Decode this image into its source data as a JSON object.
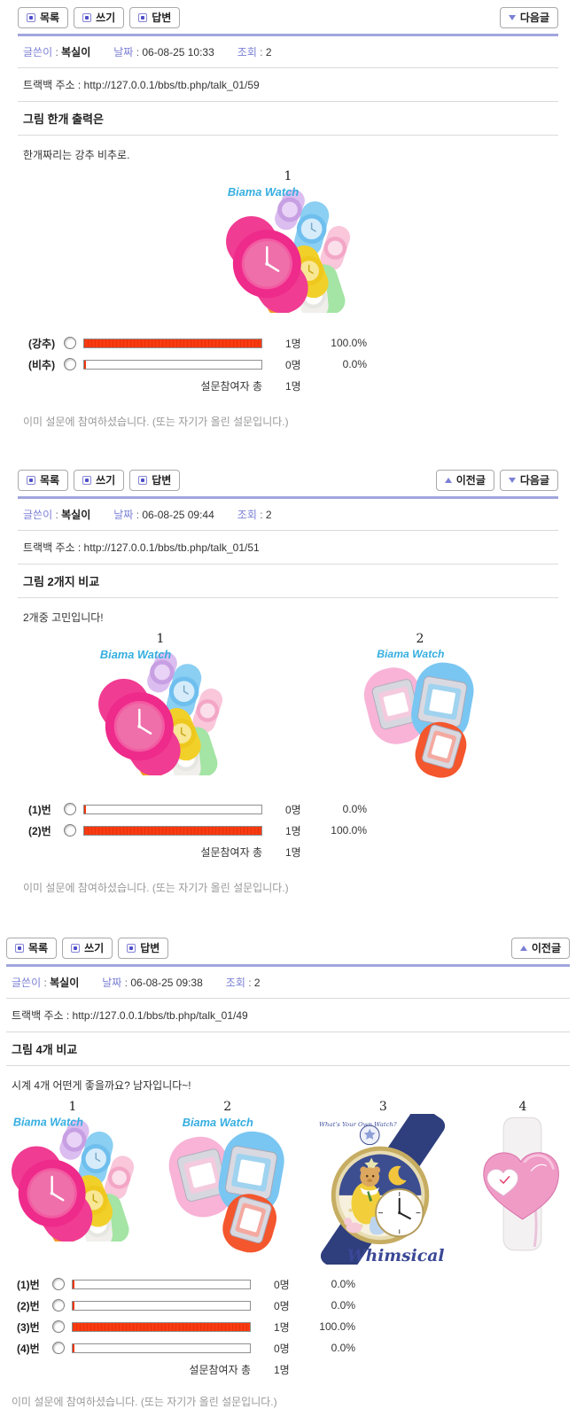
{
  "sep": " : ",
  "colors": {
    "accent_purple": "#7b7fd4",
    "divider_purple": "#a2a6de",
    "bar_red": "#fb3a10",
    "brand_blue": "#35aee0",
    "notice_gray": "#999999"
  },
  "toolbar_labels": {
    "list": "목록",
    "write": "쓰기",
    "reply": "답변",
    "prev": "이전글",
    "next": "다음글"
  },
  "posts": [
    {
      "info": {
        "author_label": "글쓴이",
        "author": "복실이",
        "date_label": "날짜",
        "date": "06-08-25 10:33",
        "views_label": "조회",
        "views": "2"
      },
      "trackback_label": "트랙백 주소 :",
      "trackback_url": "http://127.0.0.1/bbs/tb.php/talk_01/59",
      "title": "그림 한개 출력은",
      "body": "한개짜리는 강추 비추로.",
      "figures": [
        {
          "num": "1",
          "brand": "Biama Watch"
        }
      ],
      "poll": {
        "options": [
          {
            "label": "(강추)",
            "count": "1명",
            "pct": "100.0%",
            "value": 100
          },
          {
            "label": "(비추)",
            "count": "0명",
            "pct": "0.0%",
            "value": 0
          }
        ],
        "total_label": "설문참여자 총",
        "total_count": "1명"
      },
      "notice": "이미 설문에 참여하셨습니다. (또는 자기가 올린 설문입니다.)"
    },
    {
      "info": {
        "author_label": "글쓴이",
        "author": "복실이",
        "date_label": "날짜",
        "date": "06-08-25 09:44",
        "views_label": "조회",
        "views": "2"
      },
      "trackback_label": "트랙백 주소 :",
      "trackback_url": "http://127.0.0.1/bbs/tb.php/talk_01/51",
      "title": "그림 2개지 비교",
      "body": "2개중 고민입니다!",
      "figures": [
        {
          "num": "1",
          "brand": "Biama Watch"
        },
        {
          "num": "2",
          "brand": "Biama Watch"
        }
      ],
      "poll": {
        "options": [
          {
            "label": "(1)번",
            "count": "0명",
            "pct": "0.0%",
            "value": 0
          },
          {
            "label": "(2)번",
            "count": "1명",
            "pct": "100.0%",
            "value": 100
          }
        ],
        "total_label": "설문참여자 총",
        "total_count": "1명"
      },
      "notice": "이미 설문에 참여하셨습니다. (또는 자기가 올린 설문입니다.)"
    },
    {
      "info": {
        "author_label": "글쓴이",
        "author": "복실이",
        "date_label": "날짜",
        "date": "06-08-25 09:38",
        "views_label": "조회",
        "views": "2"
      },
      "trackback_label": "트랙백 주소 :",
      "trackback_url": "http://127.0.0.1/bbs/tb.php/talk_01/49",
      "title": "그림 4개 비교",
      "body": "시계 4개 어떤게 좋을까요? 남자입니다~!",
      "figures": [
        {
          "num": "1",
          "brand": "Biama Watch"
        },
        {
          "num": "2",
          "brand": "Biama Watch"
        },
        {
          "num": "3",
          "brand_top": "What's Your Own Watch?",
          "brand_bottom": "Whimsical"
        },
        {
          "num": "4"
        }
      ],
      "poll": {
        "options": [
          {
            "label": "(1)번",
            "count": "0명",
            "pct": "0.0%",
            "value": 0
          },
          {
            "label": "(2)번",
            "count": "0명",
            "pct": "0.0%",
            "value": 0
          },
          {
            "label": "(3)번",
            "count": "1명",
            "pct": "100.0%",
            "value": 100
          },
          {
            "label": "(4)번",
            "count": "0명",
            "pct": "0.0%",
            "value": 0
          }
        ],
        "total_label": "설문참여자 총",
        "total_count": "1명"
      },
      "notice": "이미 설문에 참여하셨습니다. (또는 자기가 올린 설문입니다.)"
    }
  ]
}
